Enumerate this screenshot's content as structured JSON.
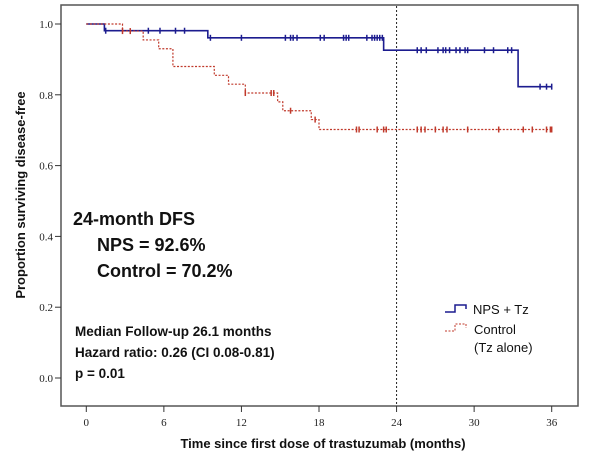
{
  "chart_data": {
    "type": "line",
    "subtype": "kaplan-meier step",
    "xlabel": "Time since first dose of trastuzumab (months)",
    "ylabel": "Proportion surviving disease-free",
    "xlim": [
      0,
      36
    ],
    "ylim": [
      0.0,
      1.0
    ],
    "xticks": [
      "0",
      "6",
      "12",
      "18",
      "24",
      "30",
      "36"
    ],
    "yticks": [
      "0.0",
      "0.2",
      "0.4",
      "0.6",
      "0.8",
      "1.0"
    ],
    "grid": false,
    "reference_line_x": 24,
    "legend_placement": "lower-right",
    "annotations": {
      "dfs_title": "24-month DFS",
      "nps_dfs": "NPS = 92.6%",
      "control_dfs": "Control = 70.2%",
      "followup": "Median Follow-up 26.1 months",
      "hazard": "Hazard ratio: 0.26 (CI 0.08-0.81)",
      "pvalue": "p = 0.01"
    },
    "series": [
      {
        "name": "NPS + Tz",
        "color": "#1c1c8f",
        "style": "solid",
        "steps": [
          [
            0,
            1.0
          ],
          [
            1.4,
            0.981
          ],
          [
            9.4,
            0.961
          ],
          [
            23.0,
            0.926
          ],
          [
            33.4,
            0.823
          ],
          [
            36,
            0.823
          ]
        ],
        "censored": [
          1.5,
          4.8,
          5.7,
          6.9,
          7.6,
          9.6,
          12.0,
          15.4,
          15.8,
          16.0,
          16.3,
          18.1,
          18.4,
          19.9,
          20.1,
          20.3,
          21.7,
          22.1,
          22.3,
          22.5,
          22.7,
          22.9,
          25.6,
          25.9,
          26.3,
          27.2,
          27.6,
          27.8,
          28.1,
          28.6,
          28.9,
          29.3,
          29.5,
          30.8,
          31.5,
          32.6,
          32.9,
          35.1,
          35.6,
          36.0
        ]
      },
      {
        "name": "Control",
        "name_line2": "(Tz alone)",
        "color": "#c0392b",
        "style": "dotted",
        "steps": [
          [
            0,
            1.0
          ],
          [
            2.8,
            0.98
          ],
          [
            4.4,
            0.955
          ],
          [
            5.6,
            0.93
          ],
          [
            6.7,
            0.88
          ],
          [
            9.9,
            0.855
          ],
          [
            11.0,
            0.83
          ],
          [
            12.3,
            0.805
          ],
          [
            14.8,
            0.78
          ],
          [
            15.2,
            0.755
          ],
          [
            17.4,
            0.73
          ],
          [
            18.0,
            0.702
          ],
          [
            36,
            0.702
          ]
        ],
        "censored": [
          2.8,
          3.4,
          12.3,
          14.3,
          14.5,
          15.8,
          17.7,
          20.9,
          21.1,
          22.5,
          23.0,
          23.2,
          25.6,
          25.9,
          26.2,
          27.0,
          27.6,
          27.9,
          29.5,
          31.9,
          33.8,
          34.5,
          35.6,
          35.9,
          36.0
        ]
      }
    ]
  }
}
